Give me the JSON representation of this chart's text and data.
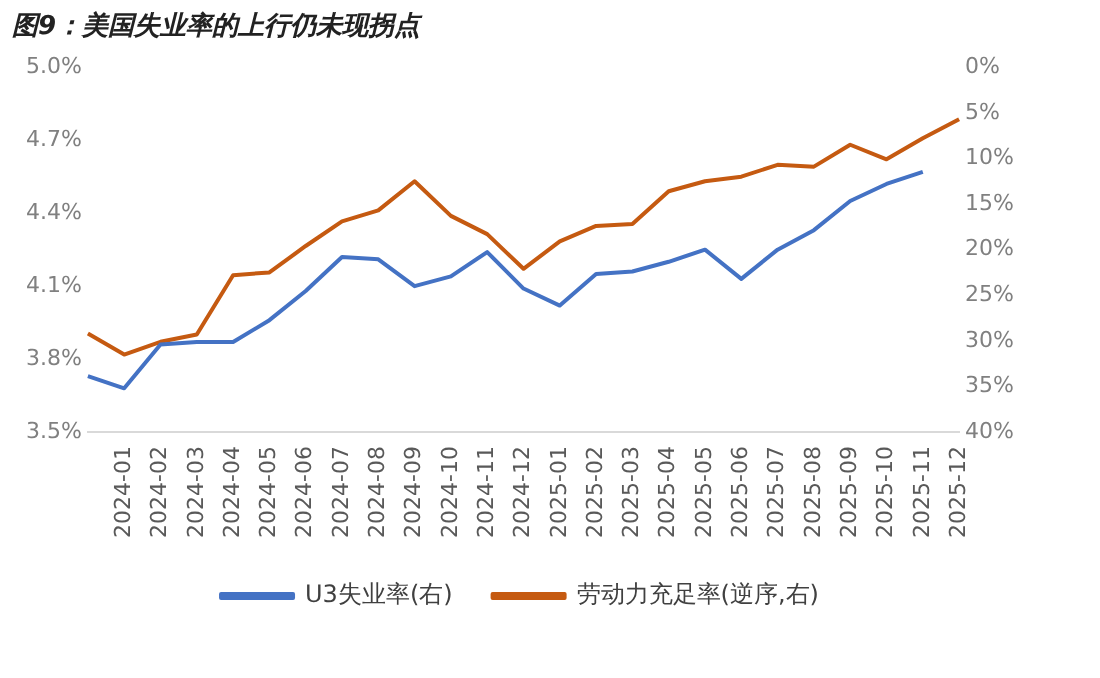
{
  "chart_data": {
    "type": "line",
    "title": "图9：美国失业率的上行仍未现拐点",
    "categories": [
      null,
      "2024-01",
      "2024-02",
      "2024-03",
      "2024-04",
      "2024-05",
      "2024-06",
      "2024-07",
      "2024-08",
      "2024-09",
      "2024-10",
      "2024-11",
      "2024-12",
      "2025-01",
      "2025-02",
      "2025-03",
      "2025-04",
      "2025-05",
      "2025-06",
      "2025-07",
      "2025-08",
      "2025-09",
      "2025-10",
      "2025-11",
      "2025-12"
    ],
    "series": [
      {
        "name": "U3失业率(右)",
        "color": "#4472c4",
        "values": [
          3.73,
          3.68,
          3.86,
          3.87,
          3.87,
          3.96,
          4.08,
          4.22,
          4.21,
          4.1,
          4.14,
          4.24,
          4.09,
          4.02,
          4.15,
          4.16,
          4.2,
          4.25,
          4.13,
          4.25,
          4.33,
          4.45,
          4.52,
          4.57,
          null
        ]
      },
      {
        "name": "劳动力充足率(逆序,右)",
        "color": "#c55a11",
        "axis": "y2",
        "values": [
          29.2,
          31.5,
          30.1,
          29.3,
          22.8,
          22.5,
          19.6,
          16.9,
          15.7,
          12.5,
          16.3,
          18.3,
          22.1,
          19.1,
          17.4,
          17.2,
          13.6,
          12.5,
          12.0,
          10.7,
          10.9,
          8.5,
          10.1,
          7.8,
          5.7
        ]
      }
    ],
    "ylim": [
      3.5,
      5.0
    ],
    "yticks": [
      {
        "value": 3.5,
        "label": "3.5%"
      },
      {
        "value": 3.8,
        "label": "3.8%"
      },
      {
        "value": 4.1,
        "label": "4.1%"
      },
      {
        "value": 4.4,
        "label": "4.4%"
      },
      {
        "value": 4.7,
        "label": "4.7%"
      },
      {
        "value": 5.0,
        "label": "5.0%"
      }
    ],
    "y2lim": [
      40,
      0
    ],
    "y2ticks": [
      {
        "value": 0,
        "label": "0%"
      },
      {
        "value": 5,
        "label": "5%"
      },
      {
        "value": 10,
        "label": "10%"
      },
      {
        "value": 15,
        "label": "15%"
      },
      {
        "value": 20,
        "label": "20%"
      },
      {
        "value": 25,
        "label": "25%"
      },
      {
        "value": 30,
        "label": "30%"
      },
      {
        "value": 35,
        "label": "35%"
      },
      {
        "value": 40,
        "label": "40%"
      }
    ],
    "grid": false,
    "legend": "bottom",
    "marker": "none",
    "line_style": "solid"
  }
}
